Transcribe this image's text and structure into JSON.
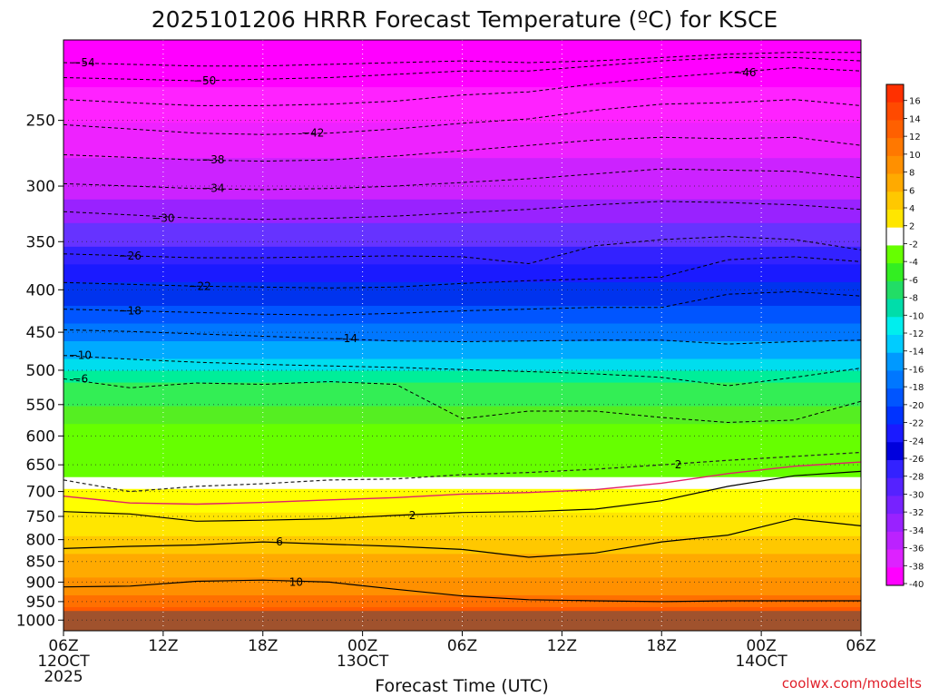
{
  "chart_data": {
    "type": "contour",
    "title": "2025101206 HRRR Forecast Temperature (ºC) for KSCE",
    "xlabel": "Forecast Time (UTC)",
    "ylabel": "",
    "credit": "coolwx.com/modelts",
    "x_ticks": [
      {
        "hour": 0,
        "lines": [
          "06Z",
          "12OCT",
          "2025"
        ]
      },
      {
        "hour": 6,
        "lines": [
          "12Z"
        ]
      },
      {
        "hour": 12,
        "lines": [
          "18Z"
        ]
      },
      {
        "hour": 18,
        "lines": [
          "00Z",
          "13OCT"
        ]
      },
      {
        "hour": 24,
        "lines": [
          "06Z"
        ]
      },
      {
        "hour": 30,
        "lines": [
          "12Z"
        ]
      },
      {
        "hour": 36,
        "lines": [
          "18Z"
        ]
      },
      {
        "hour": 42,
        "lines": [
          "00Z",
          "14OCT"
        ]
      },
      {
        "hour": 48,
        "lines": [
          "06Z"
        ]
      }
    ],
    "xlim": [
      0,
      48
    ],
    "y_ticks": [
      250,
      300,
      350,
      400,
      450,
      500,
      550,
      600,
      650,
      700,
      750,
      800,
      850,
      900,
      950,
      1000
    ],
    "ylim_hpa": [
      200,
      1030
    ],
    "y_scale": "log",
    "grid": true,
    "colorbar": {
      "labels": [
        16,
        14,
        12,
        10,
        8,
        6,
        4,
        2,
        -2,
        -4,
        -6,
        -8,
        -10,
        -12,
        -14,
        -16,
        -18,
        -20,
        -22,
        -24,
        -26,
        -28,
        -30,
        -32,
        -34,
        -36,
        -38,
        -40
      ],
      "colors": [
        "#ff3000",
        "#ff4a00",
        "#ff6000",
        "#ff7800",
        "#ff9000",
        "#ffaa00",
        "#ffc800",
        "#ffe600",
        "#ffffff",
        "#66ff00",
        "#33ee22",
        "#22dd66",
        "#00ddaa",
        "#00eeee",
        "#00ccff",
        "#0099ff",
        "#0077ff",
        "#0055ff",
        "#0033ff",
        "#1a1aff",
        "#0000dd",
        "#3322ff",
        "#5522ff",
        "#7722ff",
        "#9922ff",
        "#bb22ff",
        "#dd22ff",
        "#ff00ff"
      ]
    },
    "surface_pressure_hpa": 975,
    "contours": [
      {
        "level": -54,
        "pressure": [
          213,
          214,
          215,
          215,
          214,
          213,
          212,
          213,
          212,
          210,
          208,
          207,
          207
        ],
        "label_hour": 1.2
      },
      {
        "level": -50,
        "pressure": [
          222,
          223,
          224,
          223,
          222,
          220,
          218,
          218,
          215,
          212,
          210,
          210,
          212
        ],
        "label_hour": 8.5
      },
      {
        "level": -46,
        "pressure": [
          236,
          238,
          240,
          240,
          239,
          237,
          233,
          231,
          226,
          222,
          219,
          216,
          218
        ],
        "label_hour": 41
      },
      {
        "level": -42,
        "pressure": [
          253,
          256,
          259,
          260,
          259,
          256,
          252,
          249,
          243,
          239,
          238,
          236,
          240
        ],
        "label_hour": 15
      },
      {
        "level": -38,
        "pressure": [
          275,
          277,
          279,
          280,
          279,
          276,
          272,
          268,
          264,
          262,
          263,
          262,
          268
        ],
        "label_hour": 9
      },
      {
        "level": -34,
        "pressure": [
          298,
          300,
          302,
          303,
          302,
          300,
          297,
          294,
          290,
          286,
          287,
          288,
          293
        ],
        "label_hour": 9
      },
      {
        "level": -30,
        "pressure": [
          322,
          325,
          328,
          329,
          328,
          326,
          323,
          320,
          316,
          313,
          314,
          316,
          320
        ],
        "label_hour": 6
      },
      {
        "level": -26,
        "pressure": [
          362,
          364,
          366,
          366,
          365,
          364,
          365,
          372,
          354,
          348,
          345,
          348,
          358
        ],
        "label_hour": 4
      },
      {
        "level": -22,
        "pressure": [
          392,
          394,
          396,
          397,
          398,
          397,
          393,
          390,
          388,
          386,
          368,
          365,
          370
        ],
        "label_hour": 8.2
      },
      {
        "level": -18,
        "pressure": [
          422,
          424,
          426,
          428,
          429,
          427,
          424,
          422,
          420,
          420,
          405,
          402,
          407
        ],
        "label_hour": 4
      },
      {
        "level": -14,
        "pressure": [
          447,
          449,
          452,
          455,
          458,
          461,
          462,
          461,
          460,
          460,
          465,
          462,
          460
        ],
        "label_hour": 17
      },
      {
        "level": -10,
        "pressure": [
          480,
          485,
          489,
          492,
          494,
          496,
          499,
          502,
          505,
          510,
          522,
          510,
          497
        ],
        "label_hour": 1
      },
      {
        "level": -6,
        "pressure": [
          512,
          525,
          518,
          520,
          516,
          520,
          572,
          560,
          560,
          570,
          578,
          574,
          545
        ],
        "label_hour": 1
      },
      {
        "level": 2,
        "pressure": [
          678,
          700,
          690,
          685,
          678,
          676,
          668,
          664,
          658,
          650,
          642,
          635,
          628
        ],
        "label_hour": 37
      },
      {
        "level": 2,
        "pressure": [
          740,
          745,
          760,
          758,
          755,
          748,
          742,
          740,
          735,
          718,
          690,
          670,
          662
        ],
        "label_hour": 21
      },
      {
        "level": 6,
        "pressure": [
          820,
          815,
          812,
          805,
          810,
          815,
          822,
          840,
          830,
          805,
          790,
          755,
          770
        ],
        "label_hour": 13
      },
      {
        "level": 10,
        "pressure": [
          912,
          910,
          898,
          895,
          900,
          918,
          935,
          945,
          948,
          950,
          948,
          948,
          948
        ],
        "label_hour": 14
      }
    ]
  }
}
